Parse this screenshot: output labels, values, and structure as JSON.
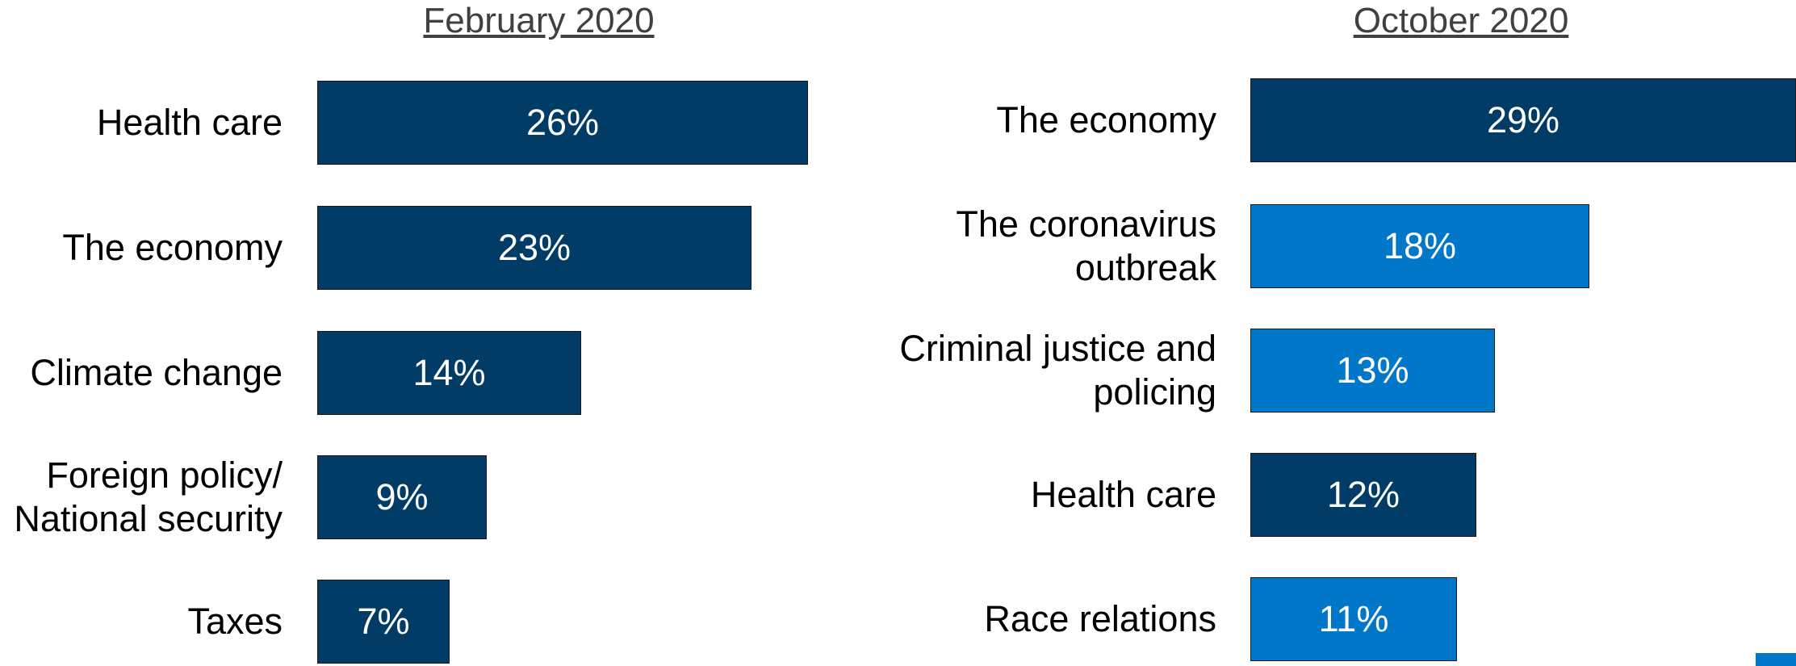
{
  "colors": {
    "dark": "#003c66",
    "light": "#0077c8",
    "title": "#404040"
  },
  "chart_data": [
    {
      "type": "bar",
      "orientation": "horizontal",
      "title": "February 2020",
      "categories": [
        "Health care",
        "The economy",
        "Climate change",
        "Foreign policy/\nNational security",
        "Taxes"
      ],
      "values": [
        26,
        23,
        14,
        9,
        7
      ],
      "value_labels": [
        "26%",
        "23%",
        "14%",
        "9%",
        "7%"
      ],
      "bar_colors": [
        "#003c66",
        "#003c66",
        "#003c66",
        "#003c66",
        "#003c66"
      ],
      "unit": "%",
      "xlim": [
        0,
        26
      ]
    },
    {
      "type": "bar",
      "orientation": "horizontal",
      "title": "October 2020",
      "categories": [
        "The economy",
        "The coronavirus\noutbreak",
        "Criminal justice and\npolicing",
        "Health care",
        "Race relations"
      ],
      "values": [
        29,
        18,
        13,
        12,
        11
      ],
      "value_labels": [
        "29%",
        "18%",
        "13%",
        "12%",
        "11%"
      ],
      "bar_colors": [
        "#003c66",
        "#0077c8",
        "#0077c8",
        "#003c66",
        "#0077c8"
      ],
      "unit": "%",
      "xlim": [
        0,
        29
      ]
    }
  ]
}
